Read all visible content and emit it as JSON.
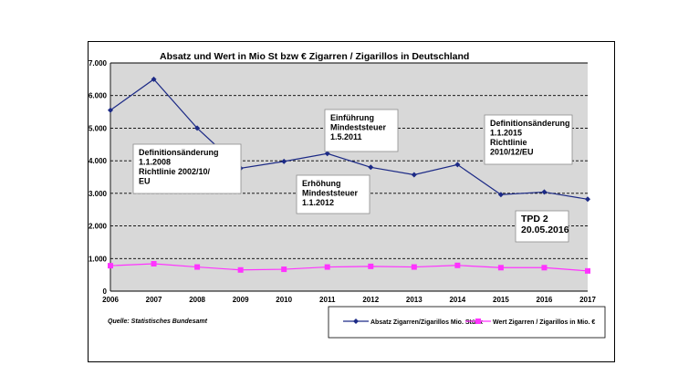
{
  "chart_data": {
    "type": "line",
    "title": "Absatz  und Wert in Mio St bzw € Zigarren / Zigarillos in Deutschland",
    "categories": [
      "2006",
      "2007",
      "2008",
      "2009",
      "2010",
      "2011",
      "2012",
      "2013",
      "2014",
      "2015",
      "2016",
      "2017"
    ],
    "ylim": [
      0,
      7000
    ],
    "yticks": [
      "0",
      "1.000",
      "2.000",
      "3.000",
      "4.000",
      "5.000",
      "6.000",
      "7.000"
    ],
    "grid": "horizontal dashed",
    "series": [
      {
        "name": "Absatz Zigarren/Zigarillos Mio. Stück",
        "color": "#1c2a86",
        "marker": "diamond",
        "values": [
          5550,
          6500,
          5000,
          3770,
          3980,
          4220,
          3800,
          3570,
          3880,
          2960,
          3040,
          2820
        ]
      },
      {
        "name": "Wert Zigarren / Zigarillos in Mio. €",
        "color": "#ff33ff",
        "marker": "square",
        "values": [
          780,
          840,
          740,
          650,
          670,
          740,
          760,
          740,
          790,
          720,
          720,
          620
        ]
      }
    ],
    "annotations": [
      [
        "Definitionsänderung",
        "1.1.2008",
        "Richtlinie  2002/10/",
        "EU"
      ],
      [
        "Einführung",
        "Mindeststeuer",
        "1.5.2011"
      ],
      [
        "Erhöhung",
        "Mindeststeuer",
        "1.1.2012"
      ],
      [
        "Definitionsänderung",
        "1.1.2015",
        "Richtlinie",
        "2010/12/EU"
      ],
      [
        "TPD 2",
        "20.05.2016"
      ]
    ],
    "source": "Quelle: Statistisches Bundesamt",
    "legend_position": "bottom-right"
  }
}
